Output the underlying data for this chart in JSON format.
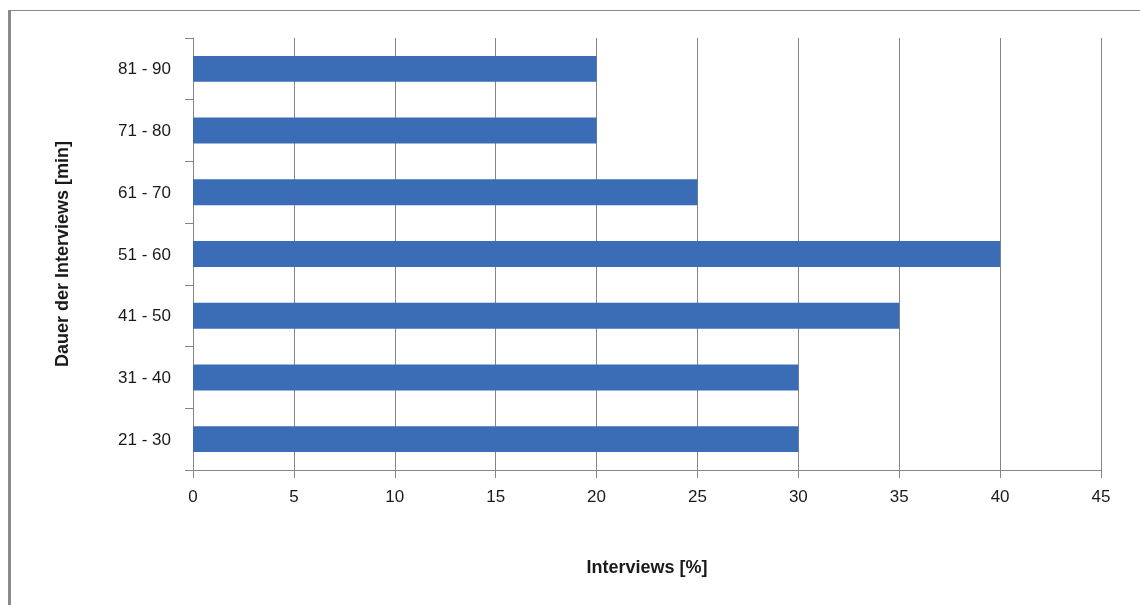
{
  "chart_data": {
    "type": "bar",
    "orientation": "horizontal",
    "xlabel": "Interviews [%]",
    "ylabel": "Dauer der Interviews [min]",
    "categories": [
      "81 - 90",
      "71 - 80",
      "61 - 70",
      "51 - 60",
      "41 - 50",
      "31 - 40",
      "21 - 30"
    ],
    "values": [
      20,
      20,
      25,
      40,
      35,
      30,
      30
    ],
    "color": "#3a6db5",
    "xlim": [
      0,
      45
    ],
    "xticks": [
      0,
      5,
      10,
      15,
      20,
      25,
      30,
      35,
      40,
      45
    ],
    "grid": "x"
  }
}
